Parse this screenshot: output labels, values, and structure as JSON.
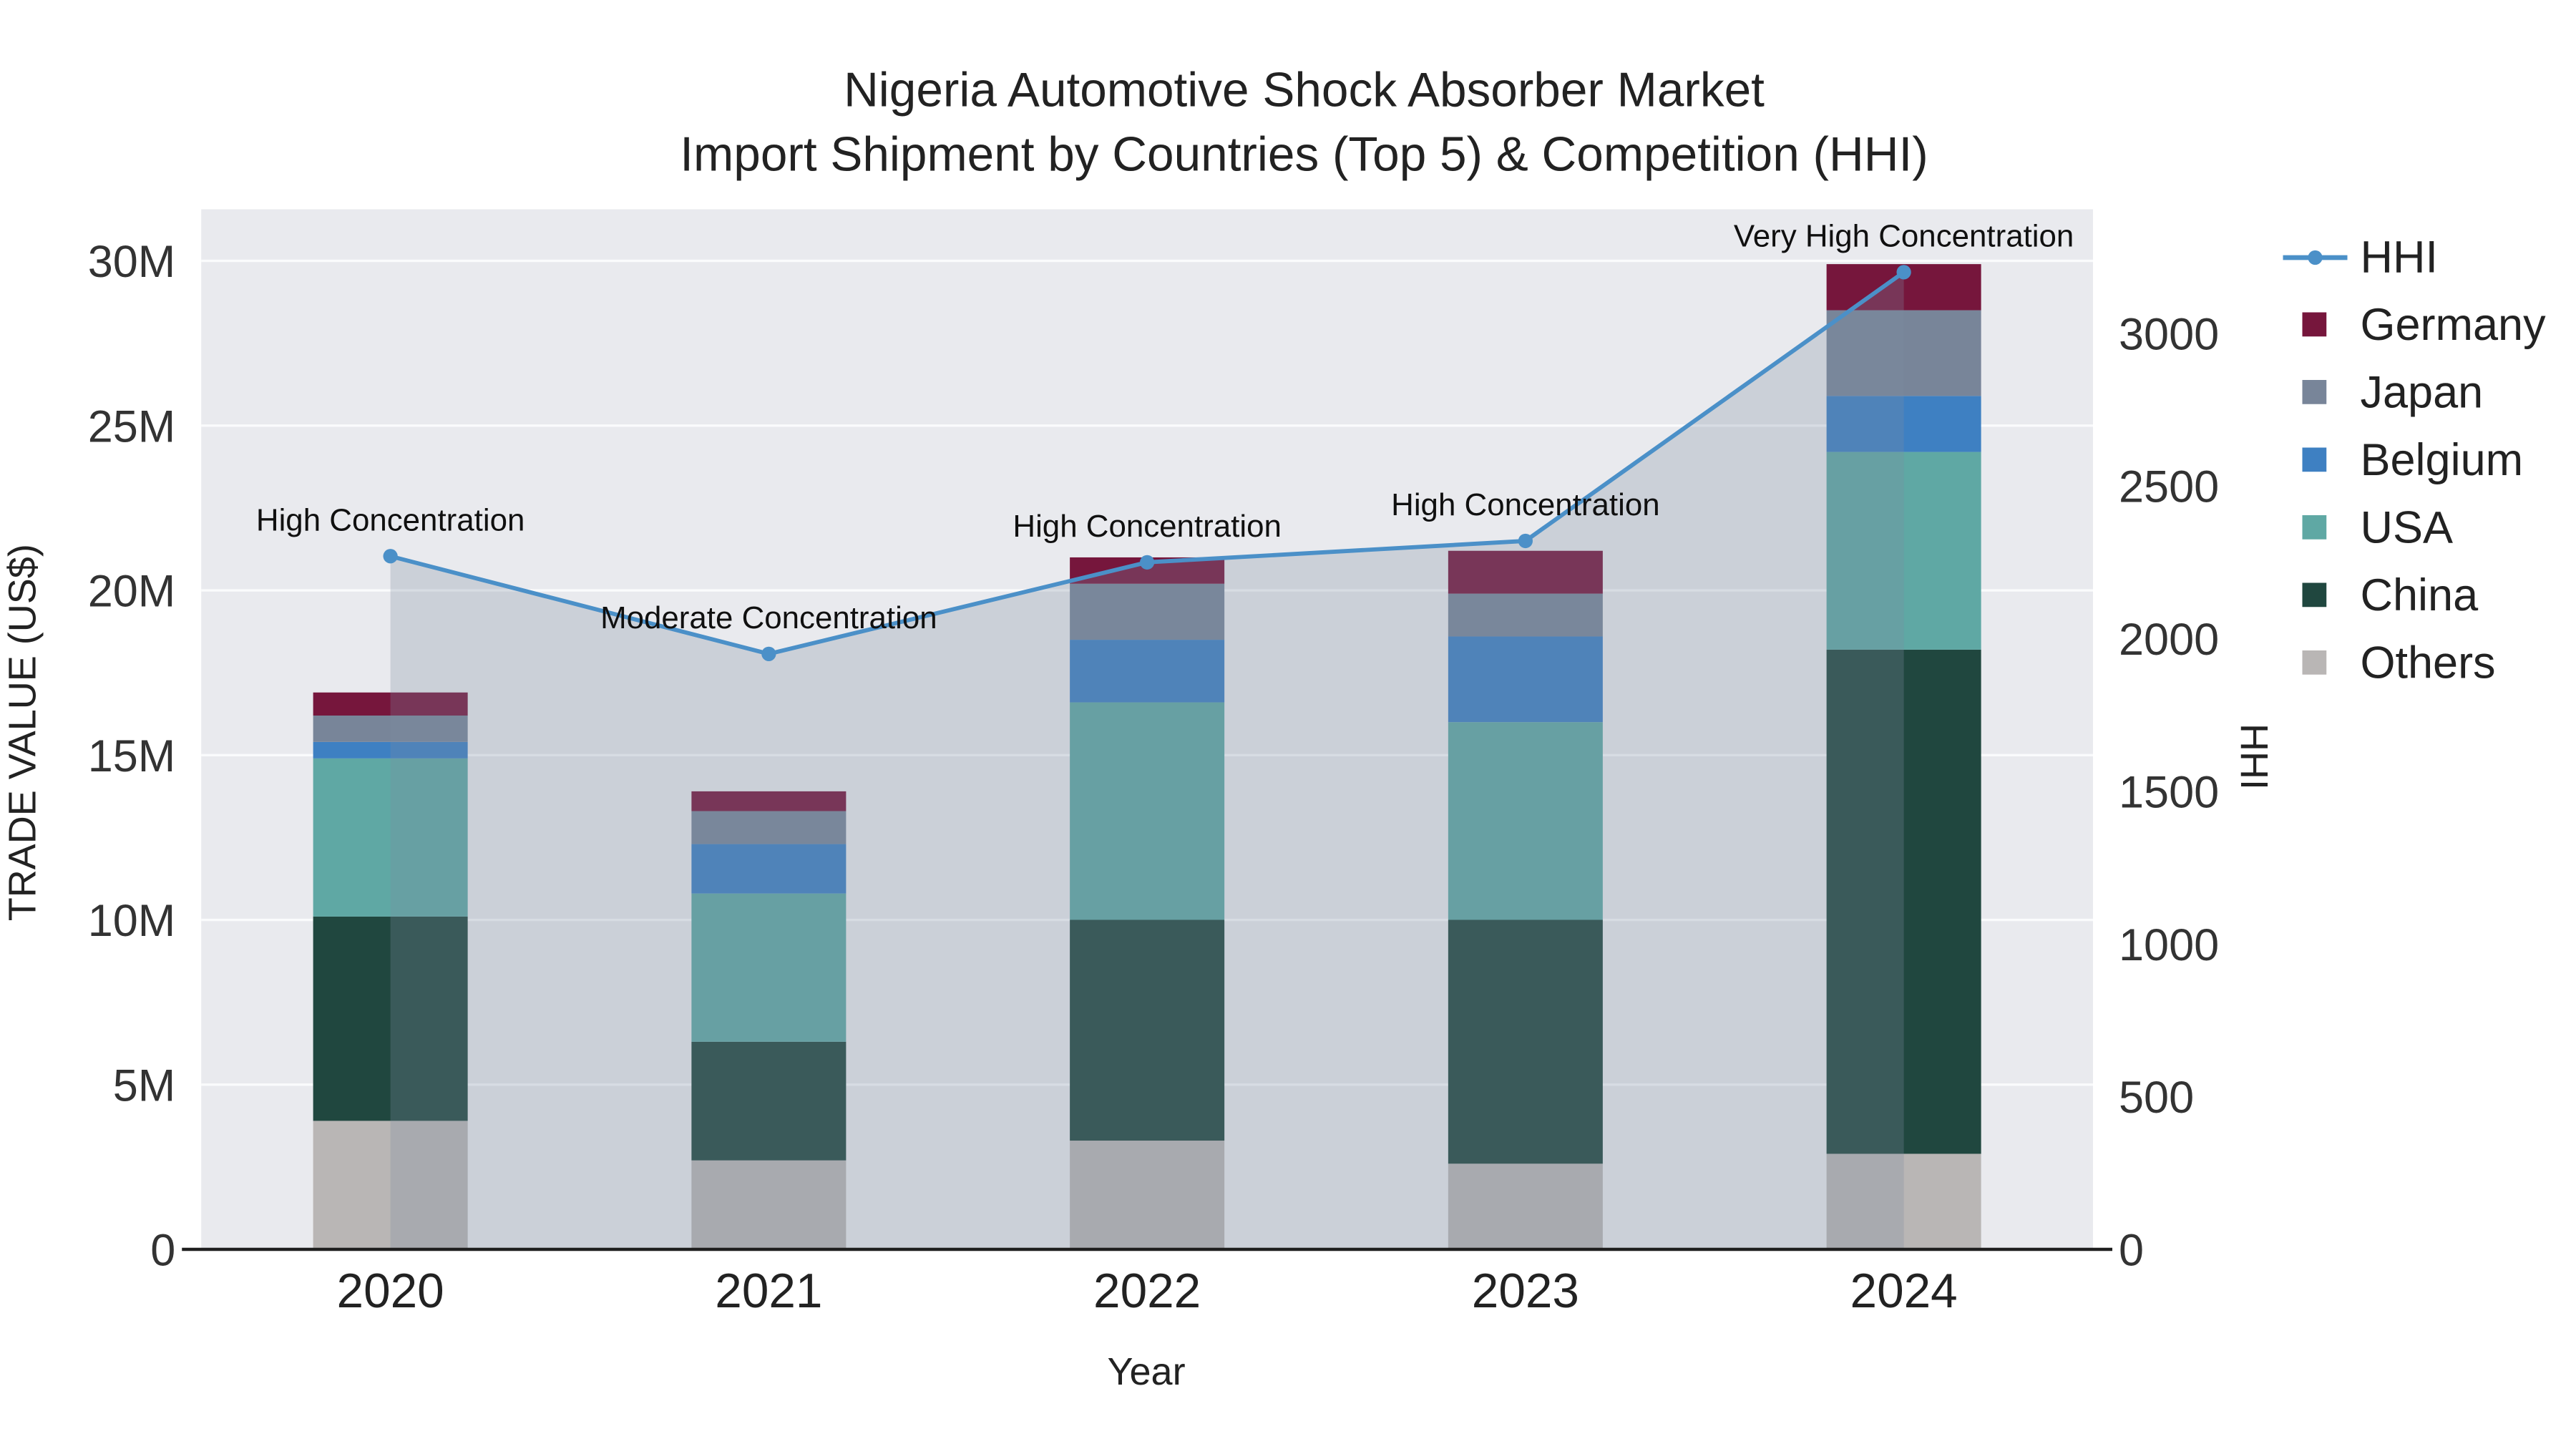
{
  "chart_data": {
    "type": "bar+line",
    "title_line1": "Nigeria Automotive Shock Absorber Market",
    "title_line2": "Import Shipment by Countries (Top 5) & Competition (HHI)",
    "xlabel": "Year",
    "ylabel_left": "TRADE VALUE (US$)",
    "ylabel_right": "HHI",
    "categories": [
      "2020",
      "2021",
      "2022",
      "2023",
      "2024"
    ],
    "bar_unit": "millions USD",
    "bar_series": [
      {
        "name": "Others",
        "color": "#b9b6b5",
        "values": [
          3.9,
          2.7,
          3.3,
          2.6,
          2.9
        ]
      },
      {
        "name": "China",
        "color": "#20473f",
        "values": [
          6.2,
          3.6,
          6.7,
          7.4,
          15.3
        ]
      },
      {
        "name": "USA",
        "color": "#5fa8a4",
        "values": [
          4.8,
          4.5,
          6.6,
          6.0,
          6.0
        ]
      },
      {
        "name": "Belgium",
        "color": "#3e80c2",
        "values": [
          0.5,
          1.5,
          1.9,
          2.6,
          1.7
        ]
      },
      {
        "name": "Japan",
        "color": "#788599",
        "values": [
          0.8,
          1.0,
          1.7,
          1.3,
          2.6
        ]
      },
      {
        "name": "Germany",
        "color": "#76163c",
        "values": [
          0.7,
          0.6,
          0.8,
          1.3,
          1.4
        ]
      }
    ],
    "bar_totals": [
      16.9,
      13.9,
      21.0,
      21.2,
      29.9
    ],
    "line_series": {
      "name": "HHI",
      "color": "#4b90c8",
      "fill": "rgba(124,140,161,0.28)",
      "values": [
        2270,
        1950,
        2250,
        2320,
        3200
      ]
    },
    "annotations": [
      "High Concentration",
      "Moderate Concentration",
      "High Concentration",
      "High Concentration",
      "Very High Concentration"
    ],
    "left_axis": {
      "max": 30,
      "values": [
        0,
        5,
        10,
        15,
        20,
        25,
        30
      ],
      "ticks": [
        "0",
        "5M",
        "10M",
        "15M",
        "20M",
        "25M",
        "30M"
      ]
    },
    "right_axis": {
      "max": 3000,
      "values": [
        0,
        500,
        1000,
        1500,
        2000,
        2500,
        3000
      ],
      "ticks": [
        "0",
        "500",
        "1000",
        "1500",
        "2000",
        "2500",
        "3000"
      ]
    },
    "colors": {
      "plot_bg": "#e9eaee",
      "grid": "#fafbfc",
      "axis_line": "#1f1f1f"
    },
    "legend_position": "right",
    "grid": true
  },
  "legend": [
    {
      "label": "HHI",
      "color": "#4b90c8",
      "type": "line"
    },
    {
      "label": "Germany",
      "color": "#76163c",
      "type": "square"
    },
    {
      "label": "Japan",
      "color": "#788599",
      "type": "square"
    },
    {
      "label": "Belgium",
      "color": "#3e80c2",
      "type": "square"
    },
    {
      "label": "USA",
      "color": "#5fa8a4",
      "type": "square"
    },
    {
      "label": "China",
      "color": "#20473f",
      "type": "square"
    },
    {
      "label": "Others",
      "color": "#b9b6b5",
      "type": "square"
    }
  ]
}
